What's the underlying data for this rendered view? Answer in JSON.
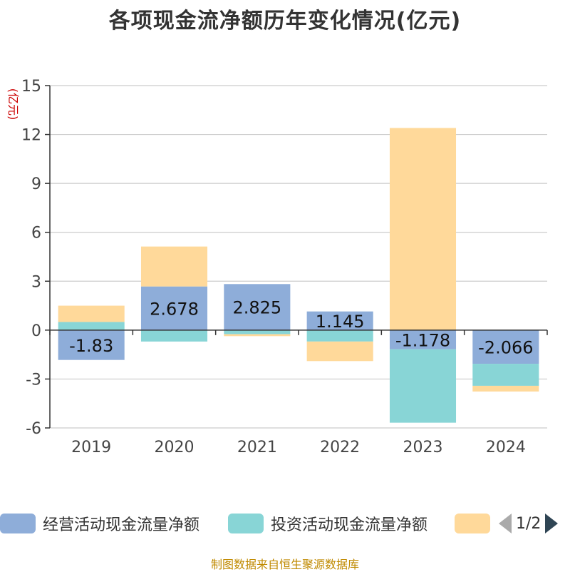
{
  "chart_data": {
    "type": "bar",
    "stacked": true,
    "title": "各项现金流净额历年变化情况(亿元)",
    "ylabel": "(亿元)",
    "xlabel": "",
    "ylim": [
      -6,
      15
    ],
    "yticks": [
      -6,
      -3,
      0,
      3,
      6,
      9,
      12,
      15
    ],
    "ytick_labels": [
      "-6",
      "-3",
      "0",
      "3",
      "6",
      "9",
      "12",
      "15"
    ],
    "categories": [
      "2019",
      "2020",
      "2021",
      "2022",
      "2023",
      "2024"
    ],
    "grid": true,
    "legend_position": "bottom",
    "series": [
      {
        "name": "经营活动现金流量净额",
        "color": "#8eadd9",
        "values": [
          -1.83,
          2.678,
          2.825,
          1.145,
          -1.178,
          -2.066
        ],
        "labels": [
          "-1.83",
          "2.678",
          "2.825",
          "1.145",
          "-1.178",
          "-2.066"
        ]
      },
      {
        "name": "投资活动现金流量净额",
        "color": "#88d5d6",
        "values": [
          0.5,
          -0.7,
          -0.25,
          -0.7,
          -4.5,
          -1.35
        ]
      },
      {
        "name": "",
        "color": "#ffd99a",
        "values": [
          1.0,
          2.45,
          -0.12,
          -1.2,
          12.4,
          -0.35
        ]
      }
    ]
  },
  "legend": {
    "item1": "经营活动现金流量净额",
    "item2": "投资活动现金流量净额",
    "page": "1/2"
  },
  "footer": "制图数据来自恒生聚源数据库"
}
